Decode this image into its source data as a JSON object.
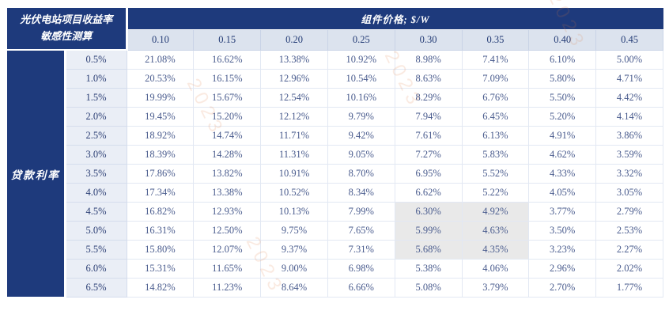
{
  "table": {
    "corner_title_line1": "光伏电站项目收益率",
    "corner_title_line2": "敏感性测算",
    "top_header": "组件价格; $/W",
    "row_header": "贷款利率"
  },
  "colors": {
    "navy_header": "#1e3a7c",
    "column_header_bg": "#dce3ee",
    "rate_column_bg": "#eaeef6",
    "data_text": "#4a5c8e",
    "highlight_bg": "#e9e9e9"
  },
  "watermark": {
    "fragments": [
      "2023",
      "2023",
      "2023",
      "2023"
    ]
  },
  "chart_data": {
    "type": "table",
    "title": "光伏电站项目收益率敏感性测算",
    "column_axis_label": "组件价格; $/W",
    "row_axis_label": "贷款利率",
    "columns": [
      "0.10",
      "0.15",
      "0.20",
      "0.25",
      "0.30",
      "0.35",
      "0.40",
      "0.45"
    ],
    "rows": [
      "0.5%",
      "1.0%",
      "1.5%",
      "2.0%",
      "2.5%",
      "3.0%",
      "3.5%",
      "4.0%",
      "4.5%",
      "5.0%",
      "5.5%",
      "6.0%",
      "6.5%"
    ],
    "values": [
      [
        "21.08%",
        "16.62%",
        "13.38%",
        "10.92%",
        "8.98%",
        "7.41%",
        "6.10%",
        "5.00%"
      ],
      [
        "20.53%",
        "16.15%",
        "12.96%",
        "10.54%",
        "8.63%",
        "7.09%",
        "5.80%",
        "4.71%"
      ],
      [
        "19.99%",
        "15.67%",
        "12.54%",
        "10.16%",
        "8.29%",
        "6.76%",
        "5.50%",
        "4.42%"
      ],
      [
        "19.45%",
        "15.20%",
        "12.12%",
        "9.79%",
        "7.94%",
        "6.45%",
        "5.20%",
        "4.14%"
      ],
      [
        "18.92%",
        "14.74%",
        "11.71%",
        "9.42%",
        "7.61%",
        "6.13%",
        "4.91%",
        "3.86%"
      ],
      [
        "18.39%",
        "14.28%",
        "11.31%",
        "9.05%",
        "7.27%",
        "5.83%",
        "4.62%",
        "3.59%"
      ],
      [
        "17.86%",
        "13.82%",
        "10.91%",
        "8.70%",
        "6.95%",
        "5.52%",
        "4.33%",
        "3.32%"
      ],
      [
        "17.34%",
        "13.38%",
        "10.52%",
        "8.34%",
        "6.62%",
        "5.22%",
        "4.05%",
        "3.05%"
      ],
      [
        "16.82%",
        "12.93%",
        "10.13%",
        "7.99%",
        "6.30%",
        "4.92%",
        "3.77%",
        "2.79%"
      ],
      [
        "16.31%",
        "12.50%",
        "9.75%",
        "7.65%",
        "5.99%",
        "4.63%",
        "3.50%",
        "2.53%"
      ],
      [
        "15.80%",
        "12.07%",
        "9.37%",
        "7.31%",
        "5.68%",
        "4.35%",
        "3.23%",
        "2.27%"
      ],
      [
        "15.31%",
        "11.65%",
        "9.00%",
        "6.98%",
        "5.38%",
        "4.06%",
        "2.96%",
        "2.02%"
      ],
      [
        "14.82%",
        "11.23%",
        "8.64%",
        "6.66%",
        "5.08%",
        "3.79%",
        "2.70%",
        "1.77%"
      ]
    ],
    "highlighted_cells": {
      "rows": [
        "4.5%",
        "5.0%",
        "5.5%"
      ],
      "columns": [
        "0.30",
        "0.35"
      ]
    },
    "layout": {
      "grid": true,
      "legend": "none"
    }
  }
}
